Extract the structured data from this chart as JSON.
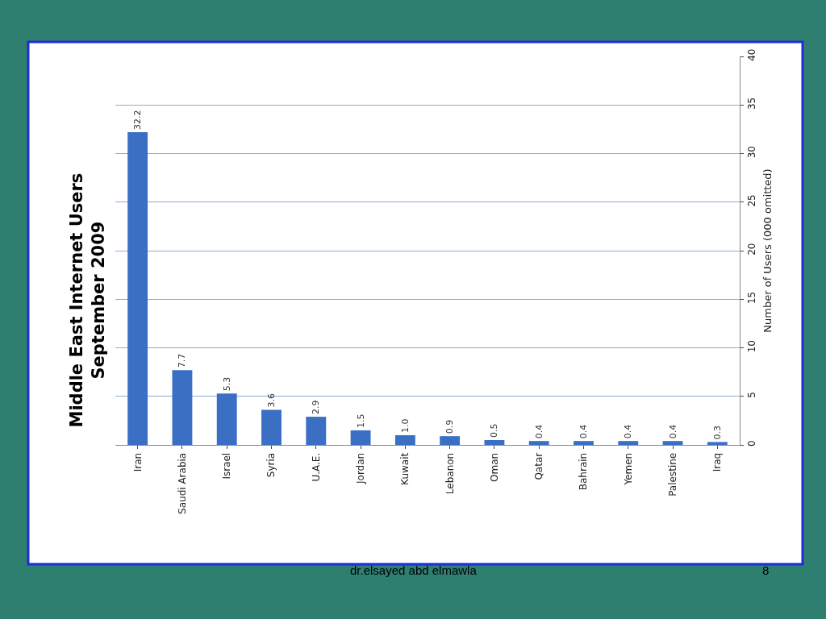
{
  "chart_data": {
    "type": "bar",
    "title": "Middle East Internet Users",
    "subtitle": "September 2009",
    "ylabel": "Number of Users (000 omitted)",
    "categories": [
      "Iran",
      "Saudi Arabia",
      "Israel",
      "Syria",
      "U.A.E.",
      "Jordan",
      "Kuwait",
      "Lebanon",
      "Oman",
      "Qatar",
      "Bahrain",
      "Yemen",
      "Palestine",
      "Iraq"
    ],
    "values": [
      32.2,
      7.7,
      5.3,
      3.6,
      2.9,
      1.5,
      1.0,
      0.9,
      0.5,
      0.4,
      0.4,
      0.4,
      0.4,
      0.3
    ],
    "value_labels": [
      "32.2",
      "7.7",
      "5.3",
      "3.6",
      "2.9",
      "1.5",
      "1.0",
      "0.9",
      "0.5",
      "0.4",
      "0.4",
      "0.4",
      "0.4",
      "0.3"
    ],
    "color": "#3a6fc4",
    "ylim": [
      0,
      40
    ],
    "yticks": [
      0,
      5,
      10,
      15,
      20,
      25,
      30,
      35,
      40
    ],
    "grid": "y",
    "annotations": [
      "dr.elsayed abd elmawla",
      "8"
    ]
  }
}
